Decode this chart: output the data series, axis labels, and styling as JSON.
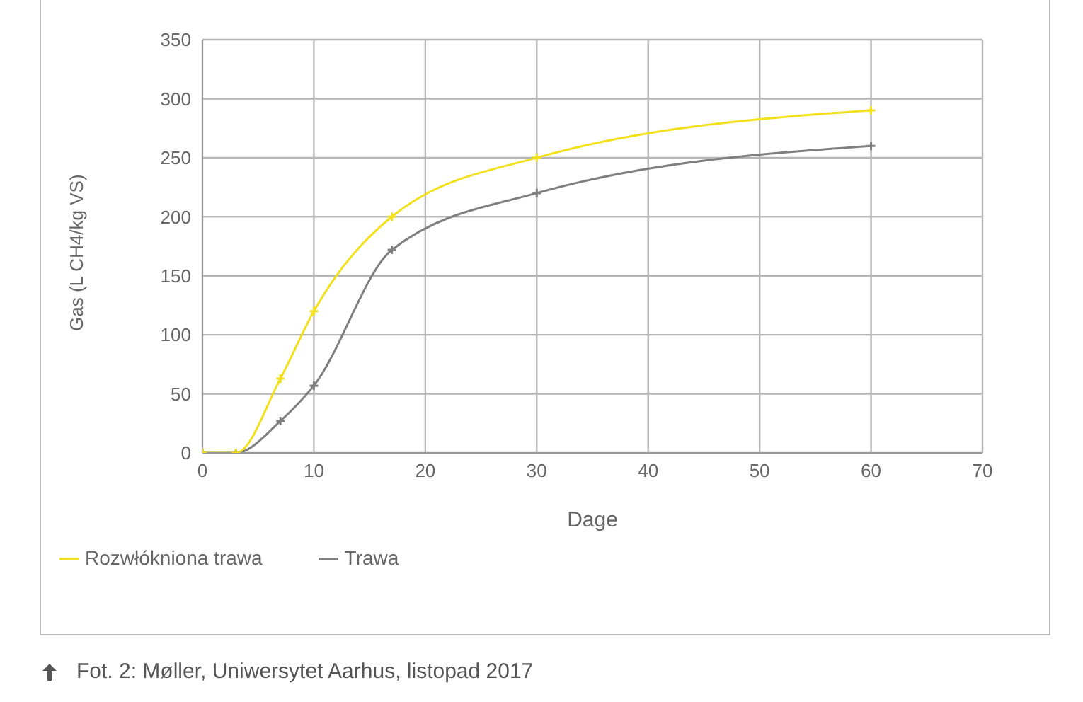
{
  "chart_data": {
    "type": "line",
    "xlabel": "Dage",
    "ylabel": "Gas (L CH4/kg VS)",
    "annotations": [
      "Fot. 2: Møller, Uniwersytet Aarhus, listopad 2017"
    ],
    "x": [
      0,
      3,
      7,
      10,
      17,
      30,
      60
    ],
    "series": [
      {
        "name": "Trawa",
        "color": "#7f7f7f",
        "values": [
          0,
          0,
          27,
          57,
          172,
          220,
          260
        ]
      },
      {
        "name": "Rozwłókniona trawa",
        "color": "#f2e01c",
        "values": [
          0,
          0,
          63,
          120,
          200,
          250,
          290
        ]
      }
    ],
    "xlim": [
      0,
      70
    ],
    "xticks": [
      0,
      10,
      20,
      30,
      40,
      50,
      60,
      70
    ],
    "ylim": [
      0,
      350
    ],
    "yticks": [
      0,
      50,
      100,
      150,
      200,
      250,
      300,
      350
    ],
    "grid": true,
    "legend": "bottom left",
    "marker": "cross",
    "line_style": "solid"
  }
}
